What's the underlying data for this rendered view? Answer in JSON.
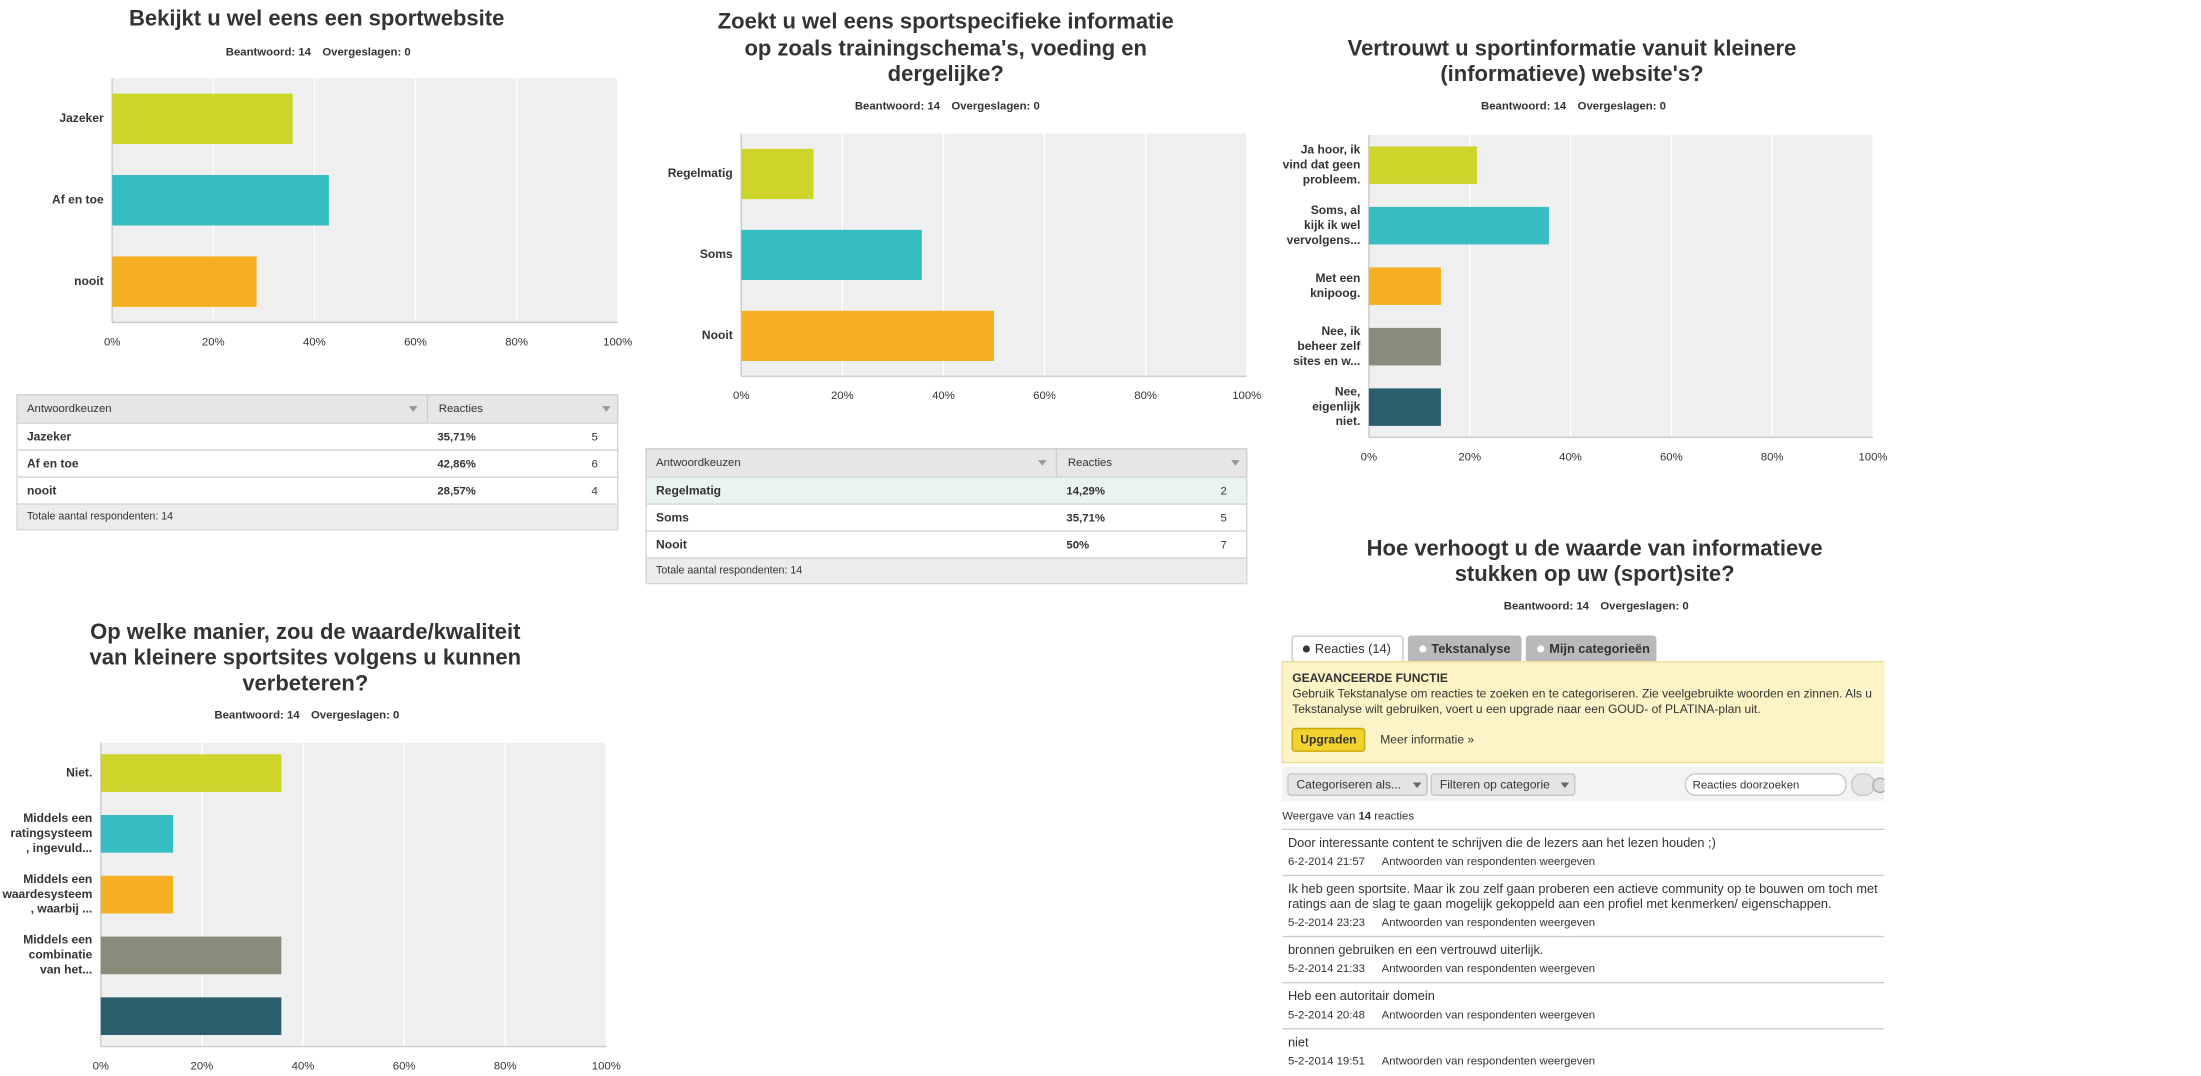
{
  "chart_data": [
    {
      "type": "bar",
      "orientation": "horizontal",
      "title": [
        "Bekijkt u wel eens een sportwebsite"
      ],
      "answered": "Beantwoord: 14",
      "skipped": "Overgeslagen: 0",
      "categories": [
        [
          "Jazeker"
        ],
        [
          "Af en toe"
        ],
        [
          "nooit"
        ]
      ],
      "values": [
        35.71,
        42.86,
        28.57
      ],
      "colors": [
        "#cdd52a",
        "#35bdc2",
        "#f6ae22"
      ],
      "xlim": [
        0,
        100
      ],
      "xticks": [
        {
          "value": 0,
          "label": "0%"
        },
        {
          "value": 20,
          "label": "20%"
        },
        {
          "value": 40,
          "label": "40%"
        },
        {
          "value": 60,
          "label": "60%"
        },
        {
          "value": 80,
          "label": "80%"
        },
        {
          "value": 100,
          "label": "100%"
        }
      ],
      "grid": true,
      "table": {
        "header": [
          "Antwoordkeuzen",
          "Reacties"
        ],
        "rows": [
          [
            "Jazeker",
            "35,71%",
            "5"
          ],
          [
            "Af en toe",
            "42,86%",
            "6"
          ],
          [
            "nooit",
            "28,57%",
            "4"
          ]
        ],
        "footer": "Totale aantal respondenten: 14"
      }
    },
    {
      "type": "bar",
      "orientation": "horizontal",
      "title": [
        "Zoekt u wel eens sportspecifieke informatie",
        "op zoals trainingschema's, voeding en",
        "dergelijke?"
      ],
      "answered": "Beantwoord: 14",
      "skipped": "Overgeslagen: 0",
      "categories": [
        [
          "Regelmatig"
        ],
        [
          "Soms"
        ],
        [
          "Nooit"
        ]
      ],
      "values": [
        14.29,
        35.71,
        50
      ],
      "colors": [
        "#cdd52a",
        "#35bdc2",
        "#f6ae22"
      ],
      "xlim": [
        0,
        100
      ],
      "xticks": [
        {
          "value": 0,
          "label": "0%"
        },
        {
          "value": 20,
          "label": "20%"
        },
        {
          "value": 40,
          "label": "40%"
        },
        {
          "value": 60,
          "label": "60%"
        },
        {
          "value": 80,
          "label": "80%"
        },
        {
          "value": 100,
          "label": "100%"
        }
      ],
      "grid": true,
      "table": {
        "header": [
          "Antwoordkeuzen",
          "Reacties"
        ],
        "rows": [
          [
            "Regelmatig",
            "14,29%",
            "2"
          ],
          [
            "Soms",
            "35,71%",
            "5"
          ],
          [
            "Nooit",
            "50%",
            "7"
          ]
        ],
        "footer": "Totale aantal respondenten: 14"
      }
    },
    {
      "type": "bar",
      "orientation": "horizontal",
      "title": [
        "Vertrouwt u sportinformatie vanuit kleinere",
        "(informatieve) website's?"
      ],
      "answered": "Beantwoord: 14",
      "skipped": "Overgeslagen: 0",
      "categories": [
        [
          "Ja hoor, ik",
          "vind dat geen",
          "probleem."
        ],
        [
          "Soms, al",
          "kijk ik wel",
          "vervolgens..."
        ],
        [
          "Met een",
          "knipoog."
        ],
        [
          "Nee, ik",
          "beheer zelf",
          "sites en w..."
        ],
        [
          "Nee,",
          "eigenlijk",
          "niet."
        ]
      ],
      "values": [
        21.43,
        35.71,
        14.29,
        14.29,
        14.29
      ],
      "colors": [
        "#cdd52a",
        "#35bdc2",
        "#f6ae22",
        "#8a8b7b",
        "#2b5f6d"
      ],
      "xlim": [
        0,
        100
      ],
      "xticks": [
        {
          "value": 0,
          "label": "0%"
        },
        {
          "value": 20,
          "label": "20%"
        },
        {
          "value": 40,
          "label": "40%"
        },
        {
          "value": 60,
          "label": "60%"
        },
        {
          "value": 80,
          "label": "80%"
        },
        {
          "value": 100,
          "label": "100%"
        }
      ],
      "grid": true
    },
    {
      "type": "bar",
      "orientation": "horizontal",
      "title": [
        "Op welke manier, zou de waarde/kwaliteit",
        "van kleinere sportsites volgens u kunnen",
        "verbeteren?"
      ],
      "answered": "Beantwoord: 14",
      "skipped": "Overgeslagen: 0",
      "categories": [
        [
          "Niet."
        ],
        [
          "Middels een",
          "ratingsysteem",
          ", ingevuld..."
        ],
        [
          "Middels een",
          "waardesysteem",
          ", waarbij ..."
        ],
        [
          "Middels een",
          "combinatie",
          "van het..."
        ],
        null
      ],
      "values": [
        35.71,
        14.29,
        14.29,
        35.71,
        35.71
      ],
      "colors": [
        "#cdd52a",
        "#35bdc2",
        "#f6ae22",
        "#8a8b7b",
        "#2b5f6d"
      ],
      "xlim": [
        0,
        100
      ],
      "xticks": [
        {
          "value": 0,
          "label": "0%"
        },
        {
          "value": 20,
          "label": "20%"
        },
        {
          "value": 40,
          "label": "40%"
        },
        {
          "value": 60,
          "label": "60%"
        },
        {
          "value": 80,
          "label": "80%"
        },
        {
          "value": 100,
          "label": "100%"
        }
      ],
      "grid": true
    }
  ],
  "open_question": {
    "title": [
      "Hoe verhoogt u de waarde van informatieve",
      "stukken op uw (sport)site?"
    ],
    "answered": "Beantwoord: 14",
    "skipped": "Overgeslagen: 0",
    "tabs": [
      "Reacties (14)",
      "Tekstanalyse",
      "Mijn categorieën"
    ],
    "notice": {
      "heading": "GEAVANCEERDE FUNCTIE",
      "lines": [
        "Gebruik Tekstanalyse om reacties te zoeken en te categoriseren. Zie veelgebruikte woorden en zinnen. Als u",
        "Tekstanalyse wilt gebruiken, voert u een upgrade naar een GOUD- of PLATINA-plan uit."
      ],
      "button": "Upgraden",
      "link": "Meer informatie »"
    },
    "toolbar": {
      "categorize": "Categoriseren als...",
      "filter": "Filteren op categorie",
      "search": "Reacties doorzoeken"
    },
    "count": [
      "Weergave van ",
      "14",
      " reacties"
    ],
    "responses": [
      {
        "text": [
          "Door interessante content te schrijven die de lezers aan het lezen houden ;)"
        ],
        "date": "6-2-2014 21:57",
        "link": "Antwoorden van respondenten weergeven"
      },
      {
        "text": [
          "Ik heb geen sportsite. Maar ik zou zelf gaan proberen een actieve community op te bouwen om toch met",
          "ratings aan de slag te gaan mogelijk gekoppeld aan een profiel met kenmerken/ eigenschappen."
        ],
        "date": "5-2-2014 23:23",
        "link": "Antwoorden van respondenten weergeven"
      },
      {
        "text": [
          "bronnen gebruiken en een vertrouwd uiterlijk."
        ],
        "date": "5-2-2014 21:33",
        "link": "Antwoorden van respondenten weergeven"
      },
      {
        "text": [
          "Heb een autoritair domein"
        ],
        "date": "5-2-2014 20:48",
        "link": "Antwoorden van respondenten weergeven"
      },
      {
        "text": [
          "niet"
        ],
        "date": "5-2-2014 19:51",
        "link": "Antwoorden van respondenten weergeven"
      }
    ]
  }
}
